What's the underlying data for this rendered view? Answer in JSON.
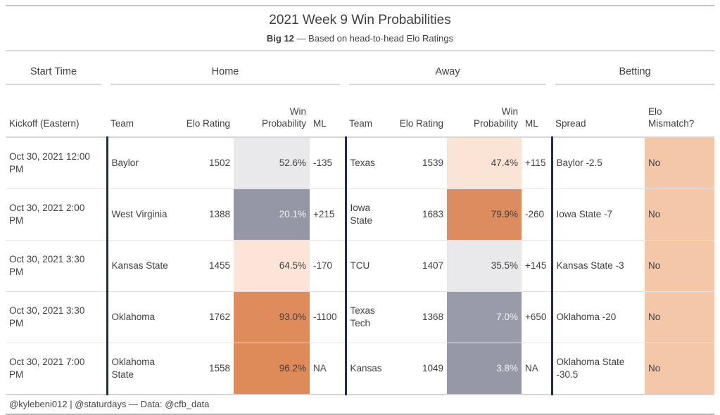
{
  "colors": {
    "divider_navy": "#222C49",
    "mismatch_bg": "#F4C7A9",
    "text_dark": "#3F3F3F",
    "text_light": "#F5F3F2",
    "win_scale_low_gray": "#9597A6",
    "win_scale_high_orange": "#DF8B5B"
  },
  "chart_data": {
    "type": "table",
    "title": "2021 Week 9 Win Probabilities",
    "subtitle_bold": "Big 12",
    "subtitle_rest": " — Based on head-to-head Elo Ratings",
    "groups": {
      "start_time": "Start Time",
      "home": "Home",
      "away": "Away",
      "betting": "Betting"
    },
    "columns": {
      "kickoff": "Kickoff (Eastern)",
      "team": "Team",
      "elo_rating": "Elo Rating",
      "win_probability": "Win Probability",
      "ml": "ML",
      "spread": "Spread",
      "elo_mismatch": "Elo Mismatch?"
    },
    "rows": [
      {
        "kickoff": "Oct 30, 2021 12:00 PM",
        "home_team": "Baylor",
        "home_elo": "1502",
        "home_win": "52.6%",
        "home_ml": "-135",
        "home_win_bg": "#E9E8EA",
        "home_win_fg": "#3F3F3F",
        "away_team": "Texas",
        "away_elo": "1539",
        "away_win": "47.4%",
        "away_ml": "+115",
        "away_win_bg": "#FBE3D6",
        "away_win_fg": "#3F3F3F",
        "spread": "Baylor -2.5",
        "mismatch": "No"
      },
      {
        "kickoff": "Oct 30, 2021 2:00 PM",
        "home_team": "West Virginia",
        "home_elo": "1388",
        "home_win": "20.1%",
        "home_ml": "+215",
        "home_win_bg": "#9597A6",
        "home_win_fg": "#F5F3F2",
        "away_team": "Iowa State",
        "away_elo": "1683",
        "away_win": "79.9%",
        "away_ml": "-260",
        "away_win_bg": "#DD8C5F",
        "away_win_fg": "#3F3F3F",
        "spread": "Iowa State -7",
        "mismatch": "No"
      },
      {
        "kickoff": "Oct 30, 2021 3:30 PM",
        "home_team": "Kansas State",
        "home_elo": "1455",
        "home_win": "64.5%",
        "home_ml": "-170",
        "home_win_bg": "#FCE5D8",
        "home_win_fg": "#3F3F3F",
        "away_team": "TCU",
        "away_elo": "1407",
        "away_win": "35.5%",
        "away_ml": "+145",
        "away_win_bg": "#E9E9EB",
        "away_win_fg": "#3F3F3F",
        "spread": "Kansas State -3",
        "mismatch": "No"
      },
      {
        "kickoff": "Oct 30, 2021 3:30 PM",
        "home_team": "Oklahoma",
        "home_elo": "1762",
        "home_win": "93.0%",
        "home_ml": "-1100",
        "home_win_bg": "#E08B5B",
        "home_win_fg": "#3F3F3F",
        "away_team": "Texas Tech",
        "away_elo": "1368",
        "away_win": "7.0%",
        "away_ml": "+650",
        "away_win_bg": "#9A9BAA",
        "away_win_fg": "#F5F3F2",
        "spread": "Oklahoma -20",
        "mismatch": "No"
      },
      {
        "kickoff": "Oct 30, 2021 7:00 PM",
        "home_team": "Oklahoma State",
        "home_elo": "1558",
        "home_win": "96.2%",
        "home_ml": "NA",
        "home_win_bg": "#DF8A59",
        "home_win_fg": "#3F3F3F",
        "away_team": "Kansas",
        "away_elo": "1049",
        "away_win": "3.8%",
        "away_ml": "NA",
        "away_win_bg": "#9798A7",
        "away_win_fg": "#F5F3F2",
        "spread": "Oklahoma State -30.5",
        "mismatch": "No"
      }
    ],
    "footer": "@kylebeni012 | @staturdays — Data: @cfb_data"
  }
}
